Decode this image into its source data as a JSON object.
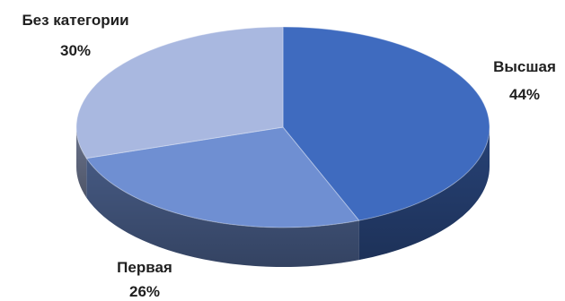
{
  "chart_data": {
    "type": "pie",
    "style": "3d",
    "title": "",
    "categories": [
      "Высшая",
      "Первая",
      "Без категории"
    ],
    "values": [
      44,
      26,
      30
    ],
    "unit": "%",
    "data_labels": [
      {
        "name": "Высшая",
        "percent": "44%"
      },
      {
        "name": "Первая",
        "percent": "26%"
      },
      {
        "name": "Без категории",
        "percent": "30%"
      }
    ],
    "colors": {
      "Высшая": "#3f6bbf",
      "Первая": "#6f8fd2",
      "Без категории": "#a9b8e0"
    },
    "legend": "none"
  }
}
